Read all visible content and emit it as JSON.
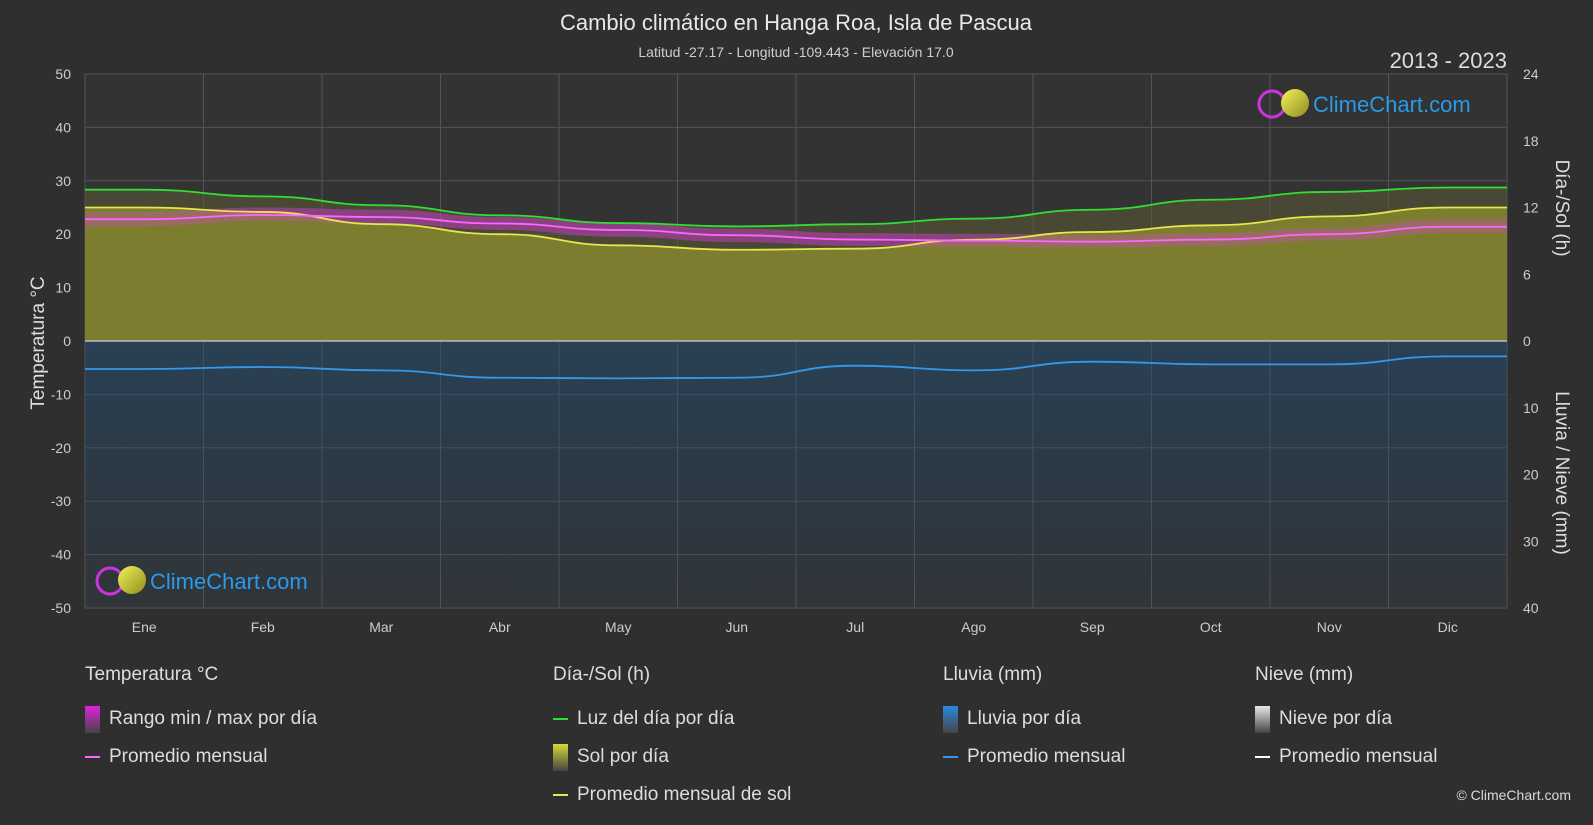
{
  "header": {
    "title": "Cambio climático en Hanga Roa, Isla de Pascua",
    "subtitle": "Latitud -27.17 - Longitud -109.443 - Elevación 17.0",
    "period": "2013 - 2023"
  },
  "brand": {
    "name": "ClimeChart.com",
    "copyright": "© ClimeChart.com"
  },
  "axes": {
    "left_label": "Temperatura °C",
    "right_top_label": "Día-/Sol (h)",
    "right_bottom_label": "Lluvia / Nieve (mm)"
  },
  "chart_data": {
    "type": "line",
    "categories": [
      "Ene",
      "Feb",
      "Mar",
      "Abr",
      "May",
      "Jun",
      "Jul",
      "Ago",
      "Sep",
      "Oct",
      "Nov",
      "Dic"
    ],
    "left_axis": {
      "label": "Temperatura °C",
      "min": -50,
      "max": 50,
      "ticks": [
        50,
        40,
        30,
        20,
        10,
        0,
        -10,
        -20,
        -30,
        -40,
        -50
      ]
    },
    "right_axis_top": {
      "label": "Día-/Sol (h)",
      "min": 0,
      "max": 24,
      "ticks": [
        24,
        18,
        12,
        6,
        0
      ]
    },
    "right_axis_bottom": {
      "label": "Lluvia / Nieve (mm)",
      "min": 0,
      "max": 40,
      "ticks": [
        0,
        10,
        20,
        30,
        40
      ]
    },
    "grid": true,
    "series": [
      {
        "name": "Luz del día por día",
        "axis": "hours",
        "color": "#33dd33",
        "values": [
          13.6,
          13.0,
          12.2,
          11.3,
          10.6,
          10.3,
          10.5,
          11.0,
          11.8,
          12.7,
          13.4,
          13.8
        ]
      },
      {
        "name": "Promedio mensual de sol",
        "axis": "hours",
        "color": "#e6e64d",
        "values": [
          12.0,
          11.6,
          10.5,
          9.6,
          8.6,
          8.2,
          8.3,
          9.1,
          9.8,
          10.4,
          11.2,
          12.0
        ]
      },
      {
        "name": "Promedio mensual",
        "group": "Temperatura °C",
        "axis": "temperature",
        "color": "#ff66ff",
        "values": [
          22.8,
          23.6,
          23.2,
          22.0,
          20.8,
          19.8,
          19.0,
          18.8,
          18.6,
          19.0,
          20.0,
          21.4
        ]
      },
      {
        "name": "Rango min / max por día",
        "axis": "temperature",
        "color": "#cc22cc",
        "min": [
          21.5,
          22.5,
          22.0,
          20.8,
          19.5,
          18.5,
          17.8,
          17.6,
          17.4,
          17.8,
          18.8,
          20.2
        ],
        "max": [
          24.2,
          25.0,
          24.6,
          23.2,
          22.0,
          21.0,
          20.2,
          20.0,
          19.8,
          20.2,
          21.2,
          22.8
        ]
      },
      {
        "name": "Promedio mensual",
        "group": "Lluvia (mm)",
        "axis": "precip",
        "color": "#3399ee",
        "values": [
          4.2,
          3.9,
          4.4,
          5.5,
          5.6,
          5.5,
          3.7,
          4.4,
          3.1,
          3.5,
          3.5,
          2.3
        ]
      }
    ]
  },
  "legend": {
    "groups": [
      {
        "title": "Temperatura °C",
        "items": [
          {
            "label": "Rango min / max por día",
            "kind": "box",
            "color": "#e020e0"
          },
          {
            "label": "Promedio mensual",
            "kind": "line",
            "color": "#ff66ff"
          }
        ]
      },
      {
        "title": "Día-/Sol (h)",
        "items": [
          {
            "label": "Luz del día por día",
            "kind": "line",
            "color": "#33dd33"
          },
          {
            "label": "Sol por día",
            "kind": "box",
            "color": "#d8d83a"
          },
          {
            "label": "Promedio mensual de sol",
            "kind": "line",
            "color": "#e6e64d"
          }
        ]
      },
      {
        "title": "Lluvia (mm)",
        "items": [
          {
            "label": "Lluvia por día",
            "kind": "box",
            "color": "#2a8ae0"
          },
          {
            "label": "Promedio mensual",
            "kind": "line",
            "color": "#3399ee"
          }
        ]
      },
      {
        "title": "Nieve (mm)",
        "items": [
          {
            "label": "Nieve por día",
            "kind": "box",
            "color": "#e8e8e8"
          },
          {
            "label": "Promedio mensual",
            "kind": "line",
            "color": "#ffffff"
          }
        ]
      }
    ]
  }
}
